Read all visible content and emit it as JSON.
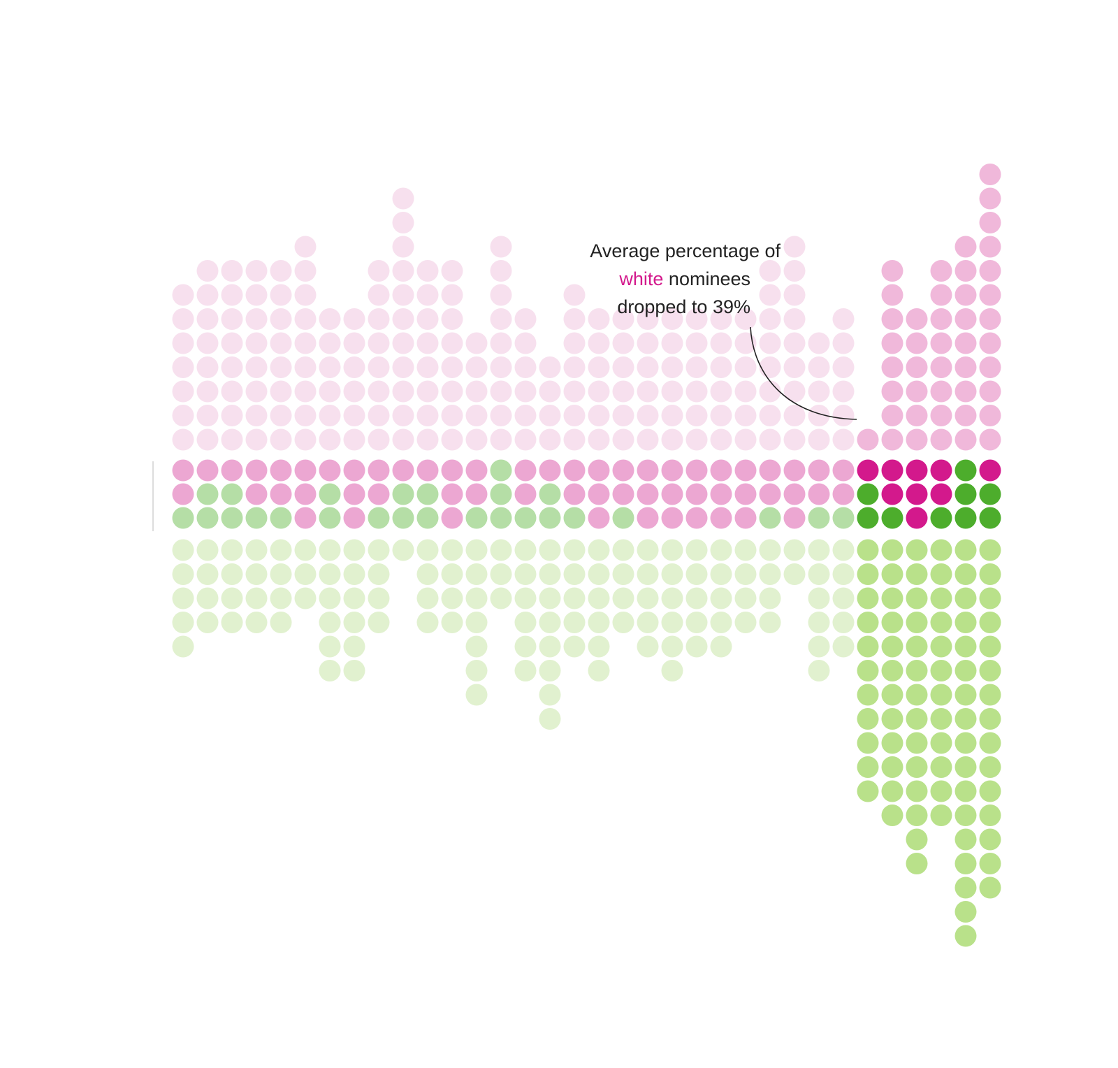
{
  "colors": {
    "pink_faint": "#f7e0ee",
    "pink_mid": "#eca7d2",
    "pink_bright_faint": "#f0b8da",
    "pink_strong": "#d3198c",
    "green_faint": "#e1f1cf",
    "green_mid": "#b5dea6",
    "green_bright_faint": "#b9e18a",
    "green_strong": "#4dad2c",
    "axis": "#bbbbbb",
    "leader": "#222222"
  },
  "annotation": {
    "line1": "Average percentage of",
    "highlight": "white",
    "line2_rest": " nominees",
    "line3": "dropped to 39%"
  },
  "chart_data": {
    "type": "dot-matrix",
    "description_units": "dot counts per column",
    "columns": [
      {
        "above": 7,
        "middle": [
          "P",
          "P",
          "G"
        ],
        "below": 5,
        "emphasis": false
      },
      {
        "above": 8,
        "middle": [
          "P",
          "G",
          "G"
        ],
        "below": 4,
        "emphasis": false
      },
      {
        "above": 8,
        "middle": [
          "P",
          "G",
          "G"
        ],
        "below": 4,
        "emphasis": false
      },
      {
        "above": 8,
        "middle": [
          "P",
          "P",
          "G"
        ],
        "below": 4,
        "emphasis": false
      },
      {
        "above": 8,
        "middle": [
          "P",
          "P",
          "G"
        ],
        "below": 4,
        "emphasis": false
      },
      {
        "above": 9,
        "middle": [
          "P",
          "P",
          "P"
        ],
        "below": 3,
        "emphasis": false
      },
      {
        "above": 6,
        "middle": [
          "P",
          "G",
          "G"
        ],
        "below": 6,
        "emphasis": false
      },
      {
        "above": 6,
        "middle": [
          "P",
          "P",
          "P"
        ],
        "below": 6,
        "emphasis": false
      },
      {
        "above": 8,
        "middle": [
          "P",
          "P",
          "G"
        ],
        "below": 4,
        "emphasis": false
      },
      {
        "above": 11,
        "middle": [
          "P",
          "G",
          "G"
        ],
        "below": 1,
        "emphasis": false
      },
      {
        "above": 8,
        "middle": [
          "P",
          "G",
          "G"
        ],
        "below": 4,
        "emphasis": false
      },
      {
        "above": 8,
        "middle": [
          "P",
          "P",
          "P"
        ],
        "below": 4,
        "emphasis": false
      },
      {
        "above": 5,
        "middle": [
          "P",
          "P",
          "G"
        ],
        "below": 7,
        "emphasis": false
      },
      {
        "above": 9,
        "middle": [
          "G",
          "G",
          "G"
        ],
        "below": 3,
        "emphasis": false
      },
      {
        "above": 6,
        "middle": [
          "P",
          "P",
          "G"
        ],
        "below": 6,
        "emphasis": false
      },
      {
        "above": 4,
        "middle": [
          "P",
          "G",
          "G"
        ],
        "below": 8,
        "emphasis": false
      },
      {
        "above": 7,
        "middle": [
          "P",
          "P",
          "G"
        ],
        "below": 5,
        "emphasis": false
      },
      {
        "above": 6,
        "middle": [
          "P",
          "P",
          "P"
        ],
        "below": 6,
        "emphasis": false
      },
      {
        "above": 6,
        "middle": [
          "P",
          "P",
          "G"
        ],
        "below": 4,
        "emphasis": false
      },
      {
        "above": 6,
        "middle": [
          "P",
          "P",
          "P"
        ],
        "below": 5,
        "emphasis": false
      },
      {
        "above": 6,
        "middle": [
          "P",
          "P",
          "P"
        ],
        "below": 6,
        "emphasis": false
      },
      {
        "above": 6,
        "middle": [
          "P",
          "P",
          "P"
        ],
        "below": 5,
        "emphasis": false
      },
      {
        "above": 6,
        "middle": [
          "P",
          "P",
          "P"
        ],
        "below": 5,
        "emphasis": false
      },
      {
        "above": 6,
        "middle": [
          "P",
          "P",
          "P"
        ],
        "below": 4,
        "emphasis": false
      },
      {
        "above": 8,
        "middle": [
          "P",
          "P",
          "G"
        ],
        "below": 4,
        "emphasis": false
      },
      {
        "above": 9,
        "middle": [
          "P",
          "P",
          "P"
        ],
        "below": 2,
        "emphasis": false
      },
      {
        "above": 5,
        "middle": [
          "P",
          "P",
          "G"
        ],
        "below": 6,
        "emphasis": false
      },
      {
        "above": 6,
        "middle": [
          "P",
          "P",
          "G"
        ],
        "below": 5,
        "emphasis": false
      },
      {
        "above": 1,
        "middle": [
          "P",
          "G",
          "G"
        ],
        "below": 11,
        "emphasis": true
      },
      {
        "above": 8,
        "middle": [
          "P",
          "P",
          "G"
        ],
        "below": 12,
        "emphasis": true
      },
      {
        "above": 6,
        "middle": [
          "P",
          "P",
          "P"
        ],
        "below": 14,
        "emphasis": true
      },
      {
        "above": 8,
        "middle": [
          "P",
          "P",
          "G"
        ],
        "below": 12,
        "emphasis": true
      },
      {
        "above": 9,
        "middle": [
          "G",
          "G",
          "G"
        ],
        "below": 17,
        "emphasis": true
      },
      {
        "above": 12,
        "middle": [
          "P",
          "G",
          "G"
        ],
        "below": 15,
        "emphasis": true
      }
    ]
  }
}
